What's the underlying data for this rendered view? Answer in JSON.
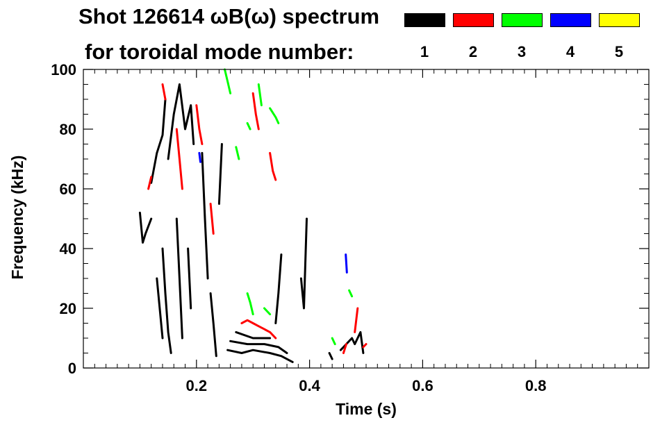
{
  "chart_data": {
    "type": "scatter",
    "title_line1": "Shot 126614 ωB(ω) spectrum",
    "title_line2": "for toroidal mode number:",
    "xlabel": "Time (s)",
    "ylabel": "Frequency (kHz)",
    "xlim": [
      0.0,
      1.0
    ],
    "ylim": [
      0,
      100
    ],
    "xticks": [
      0.2,
      0.4,
      0.6,
      0.8
    ],
    "xtick_labels": [
      "0.2",
      "0.4",
      "0.6",
      "0.8"
    ],
    "yticks": [
      0,
      20,
      40,
      60,
      80,
      100
    ],
    "ytick_labels": [
      "0",
      "20",
      "40",
      "60",
      "80",
      "100"
    ],
    "legend": [
      {
        "label": "1",
        "color": "#000000"
      },
      {
        "label": "2",
        "color": "#ff0000"
      },
      {
        "label": "3",
        "color": "#00ff00"
      },
      {
        "label": "4",
        "color": "#0000ff"
      },
      {
        "label": "5",
        "color": "#ffff00"
      }
    ],
    "series": [
      {
        "name": "1",
        "color": "#000000",
        "segments": [
          [
            [
              0.1,
              52
            ],
            [
              0.105,
              42
            ],
            [
              0.11,
              45
            ],
            [
              0.12,
              50
            ]
          ],
          [
            [
              0.12,
              62
            ],
            [
              0.13,
              72
            ],
            [
              0.14,
              78
            ],
            [
              0.145,
              90
            ]
          ],
          [
            [
              0.15,
              70
            ],
            [
              0.16,
              85
            ],
            [
              0.17,
              95
            ],
            [
              0.18,
              80
            ],
            [
              0.19,
              88
            ],
            [
              0.195,
              75
            ]
          ],
          [
            [
              0.14,
              40
            ],
            [
              0.145,
              25
            ],
            [
              0.15,
              12
            ],
            [
              0.155,
              5
            ]
          ],
          [
            [
              0.13,
              30
            ],
            [
              0.135,
              20
            ],
            [
              0.14,
              10
            ]
          ],
          [
            [
              0.165,
              50
            ],
            [
              0.17,
              30
            ],
            [
              0.175,
              10
            ]
          ],
          [
            [
              0.185,
              40
            ],
            [
              0.19,
              20
            ]
          ],
          [
            [
              0.21,
              72
            ],
            [
              0.215,
              50
            ],
            [
              0.22,
              30
            ]
          ],
          [
            [
              0.245,
              75
            ],
            [
              0.24,
              55
            ]
          ],
          [
            [
              0.225,
              25
            ],
            [
              0.23,
              15
            ],
            [
              0.235,
              4
            ]
          ],
          [
            [
              0.255,
              6
            ],
            [
              0.28,
              5
            ],
            [
              0.3,
              6
            ],
            [
              0.33,
              5
            ],
            [
              0.35,
              4
            ],
            [
              0.37,
              2
            ]
          ],
          [
            [
              0.26,
              9
            ],
            [
              0.29,
              8
            ],
            [
              0.32,
              8
            ],
            [
              0.345,
              7
            ],
            [
              0.36,
              5
            ]
          ],
          [
            [
              0.27,
              12
            ],
            [
              0.3,
              10
            ],
            [
              0.33,
              10
            ]
          ],
          [
            [
              0.34,
              15
            ],
            [
              0.345,
              25
            ],
            [
              0.35,
              38
            ]
          ],
          [
            [
              0.385,
              30
            ],
            [
              0.39,
              20
            ],
            [
              0.395,
              50
            ]
          ],
          [
            [
              0.435,
              5
            ],
            [
              0.44,
              3
            ]
          ],
          [
            [
              0.455,
              6
            ],
            [
              0.465,
              8
            ],
            [
              0.475,
              10
            ],
            [
              0.48,
              8
            ],
            [
              0.49,
              12
            ],
            [
              0.495,
              5
            ]
          ]
        ]
      },
      {
        "name": "2",
        "color": "#ff0000",
        "segments": [
          [
            [
              0.115,
              60
            ],
            [
              0.12,
              64
            ]
          ],
          [
            [
              0.14,
              95
            ],
            [
              0.145,
              90
            ]
          ],
          [
            [
              0.165,
              80
            ],
            [
              0.17,
              70
            ],
            [
              0.175,
              60
            ]
          ],
          [
            [
              0.2,
              88
            ],
            [
              0.205,
              80
            ],
            [
              0.21,
              75
            ]
          ],
          [
            [
              0.225,
              55
            ],
            [
              0.23,
              45
            ]
          ],
          [
            [
              0.28,
              15
            ],
            [
              0.29,
              16
            ],
            [
              0.3,
              15
            ],
            [
              0.31,
              14
            ],
            [
              0.32,
              13
            ],
            [
              0.33,
              12
            ],
            [
              0.34,
              10
            ]
          ],
          [
            [
              0.3,
              92
            ],
            [
              0.305,
              85
            ],
            [
              0.31,
              80
            ]
          ],
          [
            [
              0.33,
              72
            ],
            [
              0.335,
              66
            ],
            [
              0.34,
              63
            ]
          ],
          [
            [
              0.46,
              5
            ],
            [
              0.465,
              8
            ]
          ],
          [
            [
              0.48,
              12
            ],
            [
              0.485,
              20
            ]
          ],
          [
            [
              0.495,
              7
            ],
            [
              0.5,
              8
            ]
          ]
        ]
      },
      {
        "name": "3",
        "color": "#00ff00",
        "segments": [
          [
            [
              0.25,
              100
            ],
            [
              0.255,
              96
            ],
            [
              0.26,
              92
            ]
          ],
          [
            [
              0.29,
              82
            ],
            [
              0.295,
              80
            ]
          ],
          [
            [
              0.31,
              95
            ],
            [
              0.315,
              88
            ]
          ],
          [
            [
              0.33,
              87
            ],
            [
              0.34,
              84
            ],
            [
              0.345,
              82
            ]
          ],
          [
            [
              0.27,
              74
            ],
            [
              0.275,
              70
            ]
          ],
          [
            [
              0.29,
              25
            ],
            [
              0.295,
              22
            ],
            [
              0.3,
              18
            ]
          ],
          [
            [
              0.32,
              20
            ],
            [
              0.33,
              18
            ]
          ],
          [
            [
              0.47,
              26
            ],
            [
              0.475,
              24
            ]
          ],
          [
            [
              0.44,
              10
            ],
            [
              0.445,
              8
            ]
          ]
        ]
      },
      {
        "name": "4",
        "color": "#0000ff",
        "segments": [
          [
            [
              0.205,
              72
            ],
            [
              0.207,
              69
            ]
          ],
          [
            [
              0.464,
              38
            ],
            [
              0.466,
              32
            ]
          ]
        ]
      },
      {
        "name": "5",
        "color": "#ffff00",
        "segments": []
      }
    ]
  }
}
